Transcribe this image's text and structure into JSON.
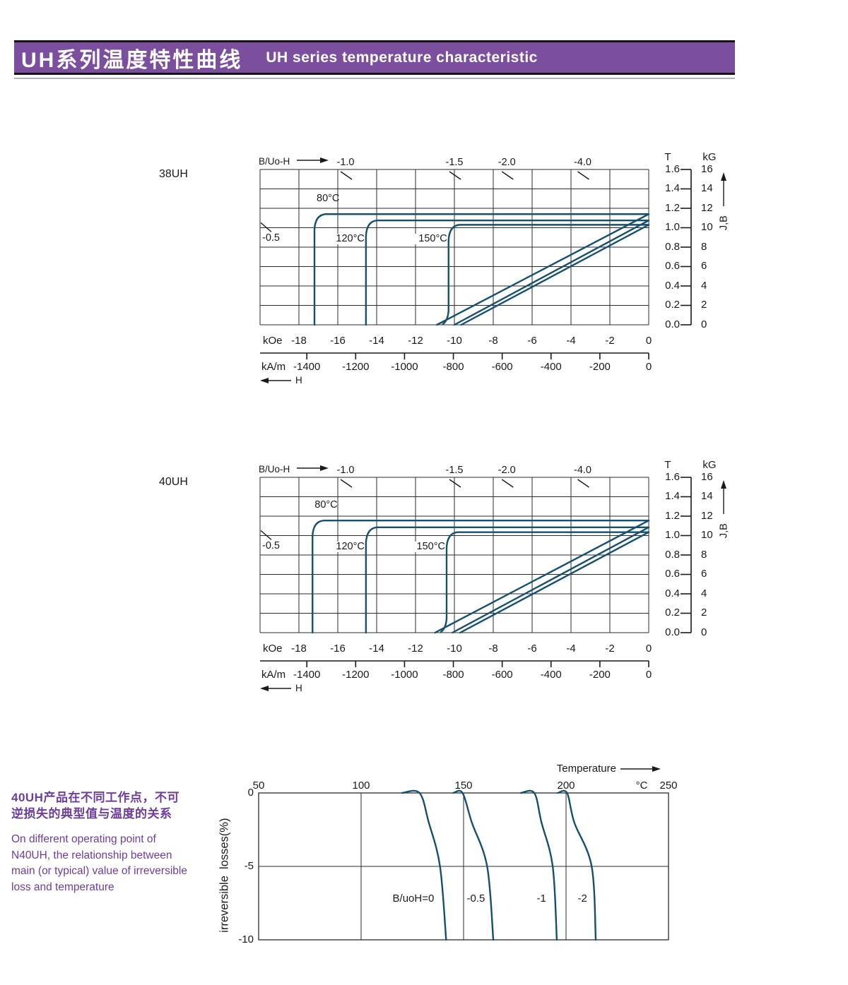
{
  "header": {
    "title_zh": "UH系列温度特性曲线",
    "title_en": "UH series temperature characteristic"
  },
  "colors": {
    "banner_bg": "#7b4f9e",
    "banner_text": "#ffffff",
    "note_text": "#6f3d9c",
    "curve": "#16506f",
    "grid": "#2b2b2b",
    "text": "#1a1a1a"
  },
  "note": {
    "zh_line1": "40UH产品在不同工作点，不可",
    "zh_line2": "逆损失的典型值与温度的关系",
    "en_line1": "On different operating point of",
    "en_line2": "N40UH,  the relationship between",
    "en_line3": "main (or typical) value of irreversible",
    "en_line4": "loss and temperature"
  },
  "chart_data": [
    {
      "type": "line",
      "title": "38UH",
      "top_axis_label": "B/Uo-H",
      "x_axis": {
        "range_kOe": [
          -20,
          0
        ],
        "unit_primary": "kOe",
        "ticks_kOe": [
          -18,
          -16,
          -14,
          -12,
          -10,
          -8,
          -6,
          -4,
          -2,
          0
        ],
        "unit_secondary": "kA/m",
        "ticks_kAm": [
          -1400,
          -1200,
          -1000,
          -800,
          -600,
          -400,
          -200,
          0
        ],
        "arrow_label": "H"
      },
      "y_axis": {
        "range_T": [
          0,
          1.6
        ],
        "unit_left": "T",
        "ticks_T": [
          "1.6",
          "1.4",
          "1.2",
          "1.0",
          "0.8",
          "0.6",
          "0.4",
          "0.2",
          "0.0"
        ],
        "unit_right": "kG",
        "ticks_kG": [
          16,
          14,
          12,
          10,
          8,
          6,
          4,
          2,
          0
        ],
        "arrow_label": "J,B"
      },
      "load_line_labels": [
        {
          "label": "-1.0",
          "x_kOe": -15.6,
          "pos": "top"
        },
        {
          "label": "-1.5",
          "x_kOe": -10.0,
          "pos": "top"
        },
        {
          "label": "-2.0",
          "x_kOe": -7.3,
          "pos": "top"
        },
        {
          "label": "-4.0",
          "x_kOe": -3.4,
          "pos": "top"
        },
        {
          "label": "-0.5",
          "x_kOe": -19.9,
          "y_T": 0.95,
          "pos": "left"
        }
      ],
      "series": [
        {
          "name": "80°C",
          "J_r_T": 1.14,
          "knee_kOe": -17.2,
          "HcB_kOe": -10.9
        },
        {
          "name": "120°C",
          "J_r_T": 1.075,
          "knee_kOe": -14.55,
          "HcB_kOe": -10.0
        },
        {
          "name": "150°C",
          "J_r_T": 1.03,
          "knee_kOe": -10.3,
          "HcB_kOe": -9.65
        }
      ]
    },
    {
      "type": "line",
      "title": "40UH",
      "top_axis_label": "B/Uo-H",
      "x_axis": {
        "range_kOe": [
          -20,
          0
        ],
        "unit_primary": "kOe",
        "ticks_kOe": [
          -18,
          -16,
          -14,
          -12,
          -10,
          -8,
          -6,
          -4,
          -2,
          0
        ],
        "unit_secondary": "kA/m",
        "ticks_kAm": [
          -1400,
          -1200,
          -1000,
          -800,
          -600,
          -400,
          -200,
          0
        ],
        "arrow_label": "H"
      },
      "y_axis": {
        "range_T": [
          0,
          1.6
        ],
        "unit_left": "T",
        "ticks_T": [
          "1.6",
          "1.4",
          "1.2",
          "1.0",
          "0.8",
          "0.6",
          "0.4",
          "0.2",
          "0.0"
        ],
        "unit_right": "kG",
        "ticks_kG": [
          16,
          14,
          12,
          10,
          8,
          6,
          4,
          2,
          0
        ],
        "arrow_label": "J,B"
      },
      "load_line_labels": [
        {
          "label": "-1.0",
          "x_kOe": -15.6,
          "pos": "top"
        },
        {
          "label": "-1.5",
          "x_kOe": -10.0,
          "pos": "top"
        },
        {
          "label": "-2.0",
          "x_kOe": -7.3,
          "pos": "top"
        },
        {
          "label": "-4.0",
          "x_kOe": -3.4,
          "pos": "top"
        },
        {
          "label": "-0.5",
          "x_kOe": -19.9,
          "y_T": 0.95,
          "pos": "left"
        }
      ],
      "series": [
        {
          "name": "80°C",
          "J_r_T": 1.155,
          "knee_kOe": -17.3,
          "HcB_kOe": -11.0
        },
        {
          "name": "120°C",
          "J_r_T": 1.085,
          "knee_kOe": -14.55,
          "HcB_kOe": -10.1
        },
        {
          "name": "150°C",
          "J_r_T": 1.035,
          "knee_kOe": -10.4,
          "HcB_kOe": -9.7
        }
      ]
    },
    {
      "type": "line",
      "title": "irreversible losses vs temperature",
      "x_axis": {
        "label": "Temperature",
        "unit": "°C",
        "range_C": [
          50,
          250
        ],
        "ticks_C": [
          50,
          100,
          150,
          200,
          250
        ]
      },
      "y_axis": {
        "label": "irreversible  losses(%)",
        "range_pct": [
          -10,
          0
        ],
        "ticks_pct": [
          "0",
          "-5",
          "-10"
        ]
      },
      "series": [
        {
          "name": "B/uoH=0",
          "points_C_pct": [
            [
              120,
              0
            ],
            [
              128.5,
              0
            ],
            [
              133,
              -2
            ],
            [
              138.5,
              -5
            ],
            [
              141.5,
              -10
            ]
          ],
          "label_T_C": 125.5,
          "label_pct": -7.2
        },
        {
          "name": "-0.5",
          "points_C_pct": [
            [
              145,
              0
            ],
            [
              149.5,
              0
            ],
            [
              154,
              -2
            ],
            [
              161.5,
              -5
            ],
            [
              164.5,
              -10
            ]
          ],
          "label_T_C": 156,
          "label_pct": -7.2
        },
        {
          "name": "-1",
          "points_C_pct": [
            [
              178,
              0
            ],
            [
              184.5,
              0
            ],
            [
              188,
              -2
            ],
            [
              193.5,
              -5
            ],
            [
              195.5,
              -10
            ]
          ],
          "label_T_C": 188,
          "label_pct": -7.2
        },
        {
          "name": "-2",
          "points_C_pct": [
            [
              196,
              0
            ],
            [
              200.5,
              0
            ],
            [
              204,
              -2
            ],
            [
              212.5,
              -5
            ],
            [
              214.5,
              -10
            ]
          ],
          "label_T_C": 208,
          "label_pct": -7.2
        }
      ]
    }
  ]
}
